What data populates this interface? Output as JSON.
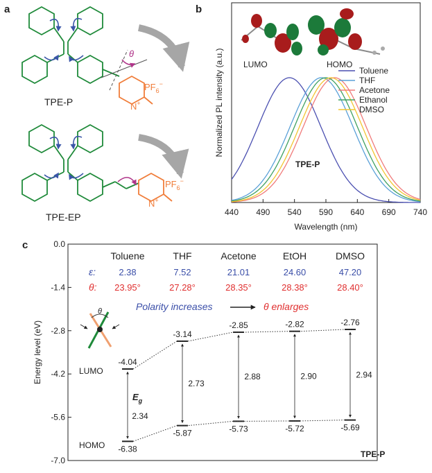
{
  "panels": {
    "a": {
      "label": "a",
      "molecule_1": "TPE-P",
      "molecule_2": "TPE-EP",
      "theta": "θ",
      "counterion": "PF",
      "counterion_sub": "6",
      "counterion_sup": "−",
      "nitrogen": "N",
      "nitrogen_sup": "+"
    },
    "b": {
      "label": "b",
      "lumo_label": "LUMO",
      "homo_label": "HOMO"
    },
    "c": {
      "label": "c"
    }
  },
  "colors": {
    "green": "#1f8a3a",
    "blue_arrow": "#3a56a8",
    "magenta": "#b0358a",
    "orange": "#f07d3a",
    "grey_arrow": "#a6a6a6",
    "ink_blue": "#3a4ea8",
    "ink_red": "#e03030",
    "Toluene": "#4a4fb0",
    "THF": "#5aa0d8",
    "Acetone": "#f07a7a",
    "Ethanol": "#3fa060",
    "DMSO": "#f2c530",
    "orbital_red": "#a81c1c",
    "orbital_green": "#1c7a3a"
  },
  "chart_data": [
    {
      "type": "line",
      "panel": "b",
      "title": "TPE-P",
      "xlabel": "Wavelength (nm)",
      "ylabel": "Normalized PL intensity (a.u.)",
      "xlim": [
        440,
        740
      ],
      "x_ticks": [
        "440",
        "490",
        "540",
        "590",
        "640",
        "690",
        "740"
      ],
      "legend_position": "right",
      "series": [
        {
          "name": "Toluene",
          "peak_nm": 532,
          "fwhm_nm": 118,
          "baseline": 0.13
        },
        {
          "name": "THF",
          "peak_nm": 583,
          "fwhm_nm": 118,
          "baseline": 0.02
        },
        {
          "name": "Acetone",
          "peak_nm": 604,
          "fwhm_nm": 118,
          "baseline": 0.0
        },
        {
          "name": "Ethanol",
          "peak_nm": 590,
          "fwhm_nm": 118,
          "baseline": 0.01
        },
        {
          "name": "DMSO",
          "peak_nm": 598,
          "fwhm_nm": 118,
          "baseline": 0.0
        }
      ]
    },
    {
      "type": "line",
      "panel": "c",
      "title": "TPE-P",
      "ylabel": "Energy level (eV)",
      "ylim": [
        -7.0,
        0.0
      ],
      "y_ticks": [
        "0.0",
        "-1.4",
        "-2.8",
        "-4.2",
        "-5.6",
        "-7.0"
      ],
      "solvents": [
        "Toluene",
        "THF",
        "Acetone",
        "EtOH",
        "DMSO"
      ],
      "epsilon_symbol": "ε:",
      "theta_symbol": "θ:",
      "epsilon": [
        "2.38",
        "7.52",
        "21.01",
        "24.60",
        "47.20"
      ],
      "theta": [
        "23.95°",
        "27.28°",
        "28.35°",
        "28.38°",
        "28.40°"
      ],
      "trend_left": "Polarity increases",
      "trend_right": "θ enlarges",
      "lumo_axis_label": "LUMO",
      "homo_axis_label": "HOMO",
      "gap_symbol": "E",
      "gap_subscript": "g",
      "lumo": [
        -4.04,
        -3.14,
        -2.85,
        -2.82,
        -2.76
      ],
      "homo": [
        -6.38,
        -5.87,
        -5.73,
        -5.72,
        -5.69
      ],
      "lumo_labels": [
        "-4.04",
        "-3.14",
        "-2.85",
        "-2.82",
        "-2.76"
      ],
      "homo_labels": [
        "-6.38",
        "-5.87",
        "-5.73",
        "-5.72",
        "-5.69"
      ],
      "gap_labels": [
        "2.34",
        "2.73",
        "2.88",
        "2.90",
        "2.94"
      ],
      "theta_mark": "θ"
    }
  ]
}
